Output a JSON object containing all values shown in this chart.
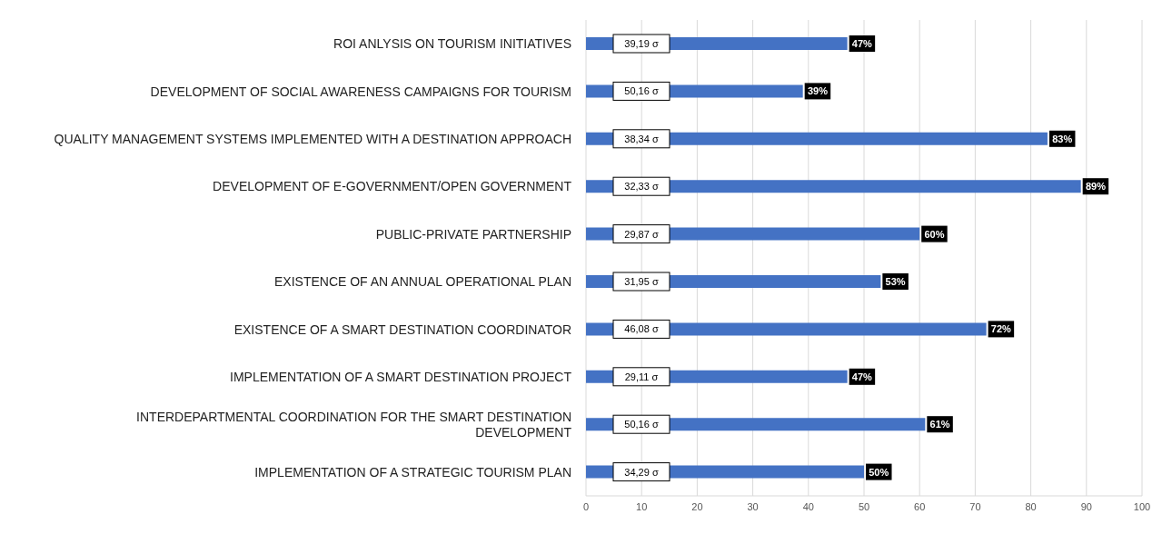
{
  "chart_data": {
    "type": "bar",
    "orientation": "horizontal",
    "categories": [
      "ROI ANLYSIS ON TOURISM INITIATIVES",
      "DEVELOPMENT OF SOCIAL AWARENESS CAMPAIGNS FOR TOURISM",
      "QUALITY MANAGEMENT SYSTEMS IMPLEMENTED WITH A DESTINATION APPROACH",
      "DEVELOPMENT OF E-GOVERNMENT/OPEN GOVERNMENT",
      "PUBLIC-PRIVATE PARTNERSHIP",
      "EXISTENCE OF AN ANNUAL OPERATIONAL PLAN",
      "EXISTENCE OF A SMART DESTINATION COORDINATOR",
      "IMPLEMENTATION OF A SMART DESTINATION PROJECT",
      "INTERDEPARTMENTAL COORDINATION FOR THE SMART DESTINATION\nDEVELOPMENT",
      "IMPLEMENTATION OF A STRATEGIC TOURISM PLAN"
    ],
    "values": [
      47,
      39,
      83,
      89,
      60,
      53,
      72,
      47,
      61,
      50
    ],
    "value_labels": [
      "47%",
      "39%",
      "83%",
      "89%",
      "60%",
      "53%",
      "72%",
      "47%",
      "61%",
      "50%"
    ],
    "color": "#4472c4",
    "xlim": [
      0,
      100
    ],
    "xticks": [
      0,
      10,
      20,
      30,
      40,
      50,
      60,
      70,
      80,
      90,
      100
    ],
    "grid": "x",
    "annotations": [
      "39,19 σ",
      "50,16 σ",
      "38,34 σ",
      "32,33 σ",
      "29,87 σ",
      "31,95 σ",
      "46,08 σ",
      "29,11 σ",
      "50,16 σ",
      "34,29 σ"
    ]
  }
}
